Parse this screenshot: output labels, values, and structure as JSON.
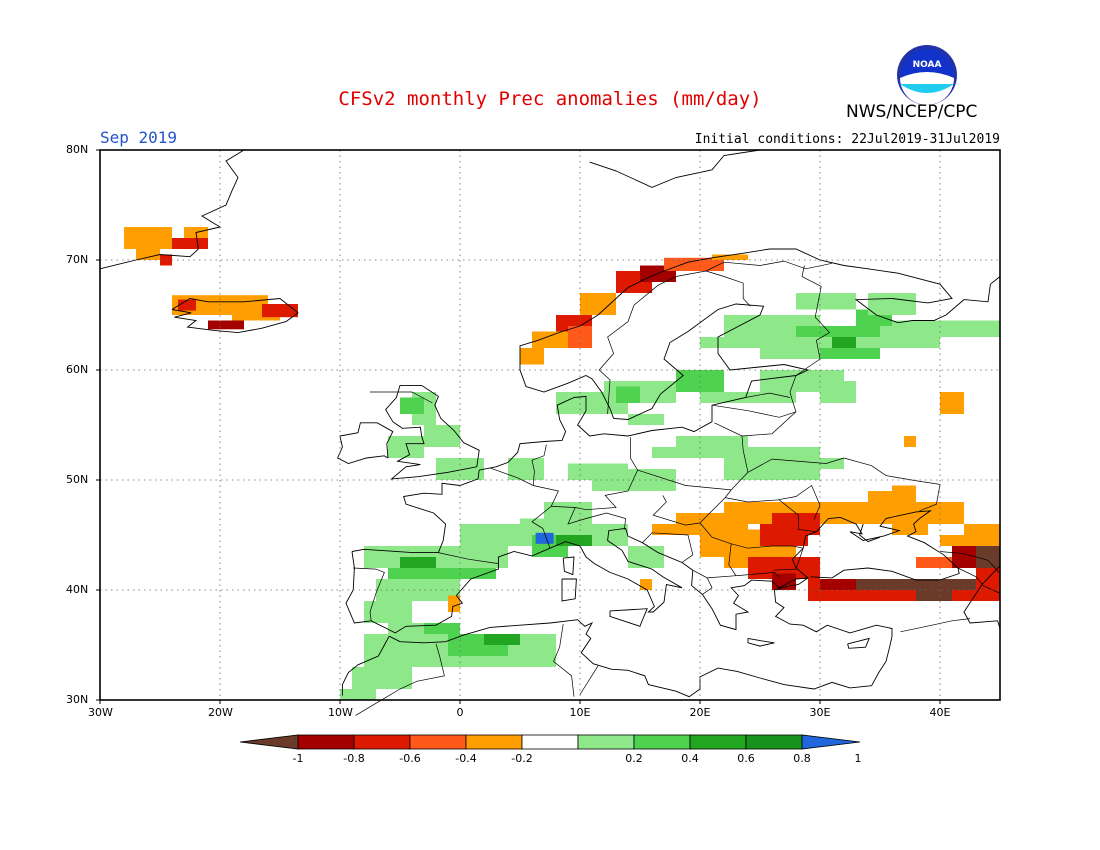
{
  "title": "CFSv2 monthly Prec anomalies (mm/day)",
  "month": "Sep 2019",
  "org": "NWS/NCEP/CPC",
  "initial_conditions": "Initial conditions: 22Jul2019-31Jul2019",
  "logo_text": "NOAA",
  "colors": {
    "title": "#e00000",
    "month": "#2255cc",
    "ocean": "#ffffff",
    "coast": "#000000"
  },
  "map": {
    "lon_range": [
      -30,
      45
    ],
    "lat_range": [
      30,
      80
    ],
    "lat_labels": [
      "80N",
      "70N",
      "60N",
      "50N",
      "40N",
      "30N"
    ],
    "lon_labels": [
      "30W",
      "20W",
      "10W",
      "0",
      "10E",
      "20E",
      "30E",
      "40E"
    ],
    "gridlines": "dotted"
  },
  "colorbar": {
    "labels": [
      "-1",
      "-0.8",
      "-0.6",
      "-0.4",
      "-0.2",
      "0.2",
      "0.4",
      "0.6",
      "0.8",
      "1"
    ],
    "colors": [
      "#6b3b2a",
      "#a50000",
      "#dd1a00",
      "#ff5a1a",
      "#ff9e00",
      "#ffffff",
      "#8ee88a",
      "#4fd24f",
      "#22a622",
      "#17921c",
      "#2266dd"
    ]
  },
  "anomaly_regions": [
    {
      "name": "Svalbard/Greenland coast",
      "cls": "neg",
      "color": "#ff9e00"
    },
    {
      "name": "Iceland",
      "cls": "neg",
      "color": "#ff9e00"
    },
    {
      "name": "Norway coast",
      "cls": "neg",
      "color": "#ff9e00"
    },
    {
      "name": "NW Russia",
      "cls": "pos",
      "color": "#8ee88a"
    },
    {
      "name": "Iberia",
      "cls": "pos",
      "color": "#8ee88a"
    },
    {
      "name": "North Africa",
      "cls": "pos",
      "color": "#8ee88a"
    },
    {
      "name": "Balkans/Black Sea",
      "cls": "neg",
      "color": "#ff9e00"
    },
    {
      "name": "Turkey",
      "cls": "neg",
      "color": "#dd1a00"
    }
  ]
}
